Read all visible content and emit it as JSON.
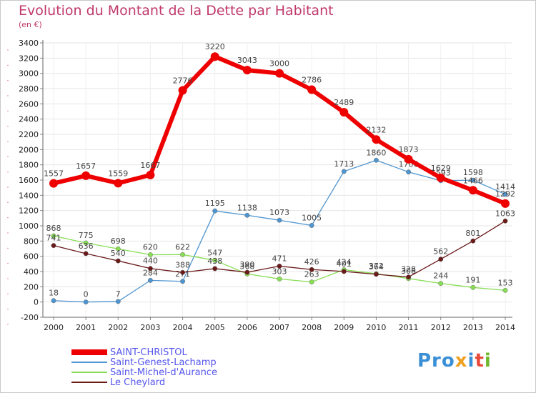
{
  "title": "Evolution du Montant de la Dette par Habitant",
  "subtitle": "(en €)",
  "logo": {
    "text": "Proxiti",
    "parts": [
      "Pro",
      "x",
      "i",
      "t",
      "i"
    ]
  },
  "chart_data": {
    "type": "line",
    "x": [
      2000,
      2001,
      2002,
      2003,
      2004,
      2005,
      2006,
      2007,
      2008,
      2009,
      2010,
      2011,
      2012,
      2013,
      2014
    ],
    "ylim": [
      -200,
      3400
    ],
    "yticks": [
      -200,
      0,
      200,
      400,
      600,
      800,
      1000,
      1200,
      1400,
      1600,
      1800,
      2000,
      2200,
      2400,
      2600,
      2800,
      3000,
      3200,
      3400
    ],
    "grid": true,
    "legend_position": "bottom-left",
    "series": [
      {
        "name": "SAINT-CHRISTOL",
        "color": "#ee0000",
        "values": [
          1557,
          1657,
          1559,
          1667,
          2776,
          3220,
          3043,
          3000,
          2786,
          2489,
          2132,
          1873,
          1629,
          1466,
          1292
        ]
      },
      {
        "name": "Saint-Genest-Lachamp",
        "color": "#4f95cf",
        "values": [
          18,
          0,
          7,
          284,
          271,
          1195,
          1138,
          1073,
          1005,
          1713,
          1860,
          1706,
          1593,
          1598,
          1414
        ]
      },
      {
        "name": "Saint-Michel-d'Aurance",
        "color": "#88dd55",
        "values": [
          868,
          775,
          698,
          620,
          622,
          547,
          368,
          303,
          263,
          424,
          372,
          308,
          244,
          191,
          153
        ]
      },
      {
        "name": "Le Cheylard",
        "color": "#6b1a1a",
        "values": [
          741,
          636,
          540,
          440,
          388,
          438,
          390,
          471,
          426,
          401,
          364,
          328,
          562,
          801,
          1063
        ]
      }
    ]
  }
}
